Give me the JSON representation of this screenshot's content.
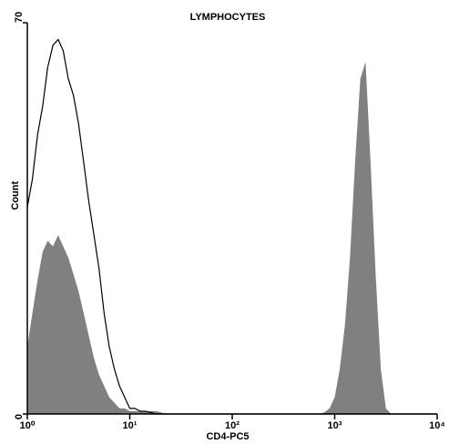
{
  "chart_data": {
    "type": "histogram-overlay",
    "title": "LYMPHOCYTES",
    "x_label": "CD4-PC5",
    "y_label": "Count",
    "x_scale": "log",
    "xlim": [
      1,
      10000
    ],
    "ylim": [
      0,
      70
    ],
    "xticks": [
      {
        "value": 1,
        "label": "10⁰"
      },
      {
        "value": 10,
        "label": "10¹"
      },
      {
        "value": 100,
        "label": "10²"
      },
      {
        "value": 1000,
        "label": "10³"
      },
      {
        "value": 10000,
        "label": "10⁴"
      }
    ],
    "yticks": [
      0,
      70
    ],
    "x": [
      1,
      1.12,
      1.26,
      1.41,
      1.58,
      1.78,
      2,
      2.24,
      2.51,
      2.82,
      3.16,
      3.55,
      3.98,
      4.47,
      5.01,
      5.62,
      6.31,
      7.08,
      7.94,
      8.91,
      10,
      11.2,
      12.6,
      14.1,
      15.8,
      17.8,
      20,
      22.4,
      25.1,
      28.2,
      31.6,
      35.5,
      39.8,
      44.7,
      50.1,
      56.2,
      63.1,
      70.8,
      79.4,
      89.1,
      100,
      112,
      126,
      141,
      158,
      178,
      200,
      224,
      251,
      282,
      316,
      355,
      398,
      447,
      501,
      562,
      631,
      708,
      794,
      891,
      1000,
      1120,
      1260,
      1410,
      1580,
      1780,
      2000,
      2240,
      2510,
      2820,
      3160,
      3550,
      3980,
      4470,
      5010,
      5620,
      6310,
      7080,
      7940,
      8910,
      10000
    ],
    "series": [
      {
        "color": "#808080",
        "filled": true,
        "values": [
          12,
          18,
          24,
          29,
          31,
          30,
          32,
          30,
          28,
          25,
          22,
          18,
          14,
          10,
          7,
          5,
          3,
          2,
          1,
          1,
          0.5,
          0.5,
          0.5,
          0.5,
          0.5,
          0.5,
          0.3,
          0,
          0,
          0,
          0,
          0,
          0,
          0,
          0,
          0,
          0,
          0,
          0,
          0,
          0,
          0,
          0,
          0,
          0,
          0,
          0,
          0,
          0,
          0,
          0,
          0,
          0,
          0,
          0,
          0,
          0,
          0,
          0.3,
          1,
          3,
          8,
          16,
          28,
          45,
          60,
          63,
          45,
          25,
          8,
          1,
          0,
          0,
          0,
          0,
          0,
          0,
          0,
          0,
          0,
          0
        ]
      },
      {
        "color": "#000000",
        "filled": false,
        "values": [
          37,
          42,
          50,
          55,
          62,
          66,
          67,
          65,
          60,
          57,
          52,
          45,
          38,
          32,
          26,
          18,
          12,
          8,
          5,
          3,
          1,
          1,
          0.5,
          0.5,
          0.3,
          0,
          0,
          0,
          0,
          0,
          0,
          0,
          0,
          0,
          0,
          0,
          0,
          0,
          0,
          0,
          0,
          0,
          0,
          0,
          0,
          0,
          0,
          0,
          0,
          0,
          0,
          0,
          0,
          0,
          0,
          0,
          0,
          0,
          0,
          0,
          0,
          0,
          0,
          0,
          0,
          0,
          0,
          0,
          0,
          0,
          0,
          0,
          0,
          0,
          0,
          0,
          0,
          0,
          0,
          0,
          0
        ]
      }
    ]
  }
}
